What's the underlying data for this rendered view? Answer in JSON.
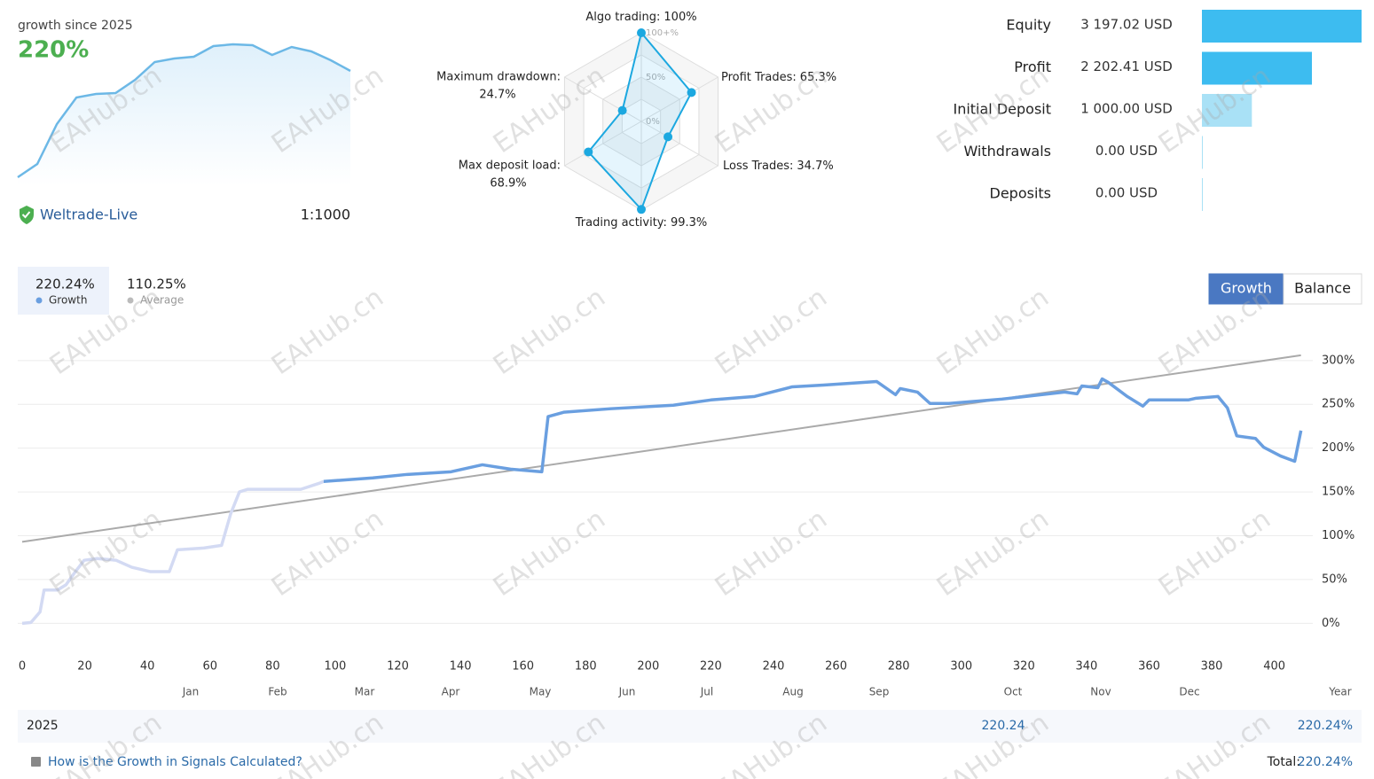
{
  "summary": {
    "label": "growth since 2025",
    "value_label": "220%",
    "broker": "Weltrade-Live",
    "leverage": "1:1000",
    "sparkline": [
      0,
      15,
      60,
      90,
      94,
      95,
      110,
      130,
      134,
      136,
      148,
      150,
      149,
      138,
      147,
      142,
      132,
      120
    ]
  },
  "radar": {
    "rings": [
      "100+%",
      "50%",
      "0%"
    ],
    "axes": [
      {
        "label": "Algo trading:",
        "value": 100,
        "value_label": "100%"
      },
      {
        "label": "Profit Trades:",
        "value": 65.3,
        "value_label": "65.3%"
      },
      {
        "label": "Loss Trades:",
        "value": 34.7,
        "value_label": "34.7%"
      },
      {
        "label": "Trading activity:",
        "value": 99.3,
        "value_label": "99.3%"
      },
      {
        "label": "Max deposit load:",
        "value": 68.9,
        "value_label": "68.9%"
      },
      {
        "label": "Maximum drawdown:",
        "value": 24.7,
        "value_label": "24.7%"
      }
    ]
  },
  "balances": [
    {
      "label": "Equity",
      "value": 3197.02,
      "value_label": "3 197.02 USD",
      "color": "#3dbcf0"
    },
    {
      "label": "Profit",
      "value": 2202.41,
      "value_label": "2 202.41 USD",
      "color": "#3dbcf0"
    },
    {
      "label": "Initial Deposit",
      "value": 1000,
      "value_label": "1 000.00 USD",
      "color": "#a9e1f6"
    },
    {
      "label": "Withdrawals",
      "value": 0,
      "value_label": "0.00 USD",
      "color": "#a9e1f6"
    },
    {
      "label": "Deposits",
      "value": 0,
      "value_label": "0.00 USD",
      "color": "#a9e1f6"
    }
  ],
  "chart_data": {
    "type": "line",
    "series": [
      {
        "name": "Growth",
        "value_label": "220.24%",
        "color": "#6a9fe0",
        "faded_color": "#d3daf3",
        "faded_until_x": 96.3,
        "x": [
          0,
          2.8,
          5.7,
          7,
          8.5,
          11.3,
          14,
          17,
          19.8,
          24,
          30,
          35,
          41,
          47,
          49.6,
          58,
          63.7,
          66.6,
          69.4,
          72,
          78,
          89,
          95,
          96.3,
          112,
          123,
          137,
          147,
          156,
          166,
          168,
          173,
          188,
          208,
          220,
          234,
          246,
          256,
          273,
          279,
          280.5,
          286,
          290,
          296,
          313,
          333,
          337,
          338.5,
          343.6,
          345,
          347,
          353,
          358,
          360,
          372.5,
          375,
          382,
          385,
          388,
          394,
          396.6,
          402,
          406.5,
          408.5
        ],
        "values": [
          0,
          1,
          13,
          38,
          38,
          38,
          44,
          59,
          72,
          74,
          72,
          64,
          59,
          59,
          84,
          86,
          89,
          125,
          150,
          153,
          153,
          153,
          160,
          162,
          166,
          170,
          173,
          181,
          176,
          173,
          236,
          241,
          245,
          249,
          255,
          259,
          270,
          272,
          276,
          261,
          268,
          264,
          251,
          251,
          256,
          264,
          262,
          271,
          269,
          279,
          275,
          259,
          248,
          255,
          255,
          257,
          259,
          246,
          214,
          211,
          201,
          191,
          185,
          220
        ]
      },
      {
        "name": "Average",
        "value_label": "110.25%",
        "color": "#aaaaaa",
        "x": [
          0,
          408.5
        ],
        "values": [
          93,
          306
        ]
      }
    ],
    "xlim": [
      0,
      412
    ],
    "xticks": [
      0,
      20,
      40,
      60,
      80,
      100,
      120,
      140,
      160,
      180,
      200,
      220,
      240,
      260,
      280,
      300,
      320,
      340,
      360,
      380,
      400
    ],
    "ylim": [
      -30,
      315
    ],
    "yticks": [
      {
        "value": 0,
        "label": "0%"
      },
      {
        "value": 50,
        "label": "50%"
      },
      {
        "value": 100,
        "label": "100%"
      },
      {
        "value": 150,
        "label": "150%"
      },
      {
        "value": 200,
        "label": "200%"
      },
      {
        "value": 250,
        "label": "250%"
      },
      {
        "value": 300,
        "label": "300%"
      }
    ],
    "grid": true,
    "months": [
      "Jan",
      "Feb",
      "Mar",
      "Apr",
      "May",
      "Jun",
      "Jul",
      "Aug",
      "Sep",
      "Oct",
      "Nov",
      "Dec"
    ],
    "period_label": "Year",
    "buttons": [
      "Growth",
      "Balance"
    ],
    "active_button": 0
  },
  "footer": {
    "year": "2025",
    "value": "220.24",
    "value_pct": "220.24%",
    "help": "How is the Growth in Signals Calculated?",
    "total_label": "Total:",
    "total": "220.24%"
  },
  "watermark": "EAHub.cn"
}
